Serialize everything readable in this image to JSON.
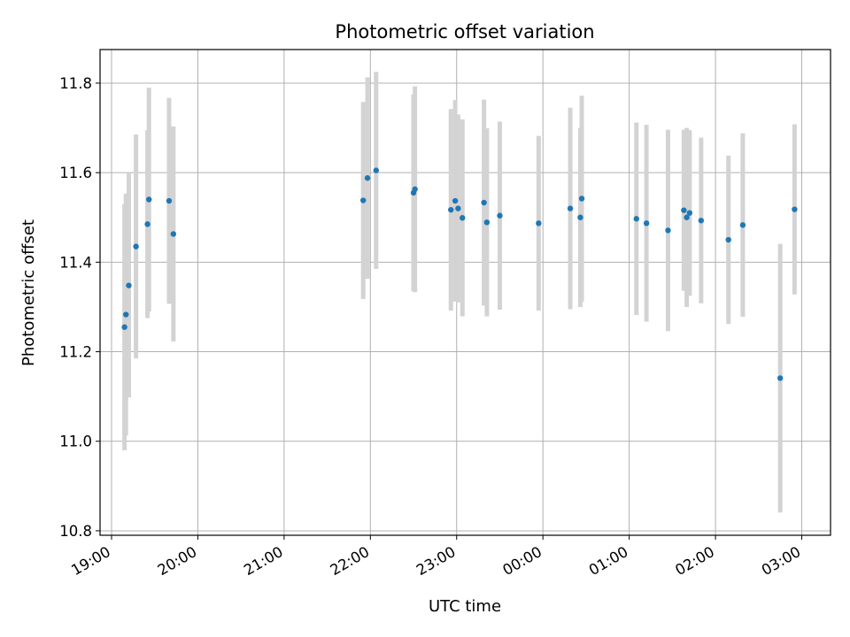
{
  "chart_data": {
    "type": "scatter",
    "title": "Photometric offset variation",
    "xlabel": "UTC time",
    "ylabel": "Photometric offset",
    "x_is_time": true,
    "x_ticks": [
      "19:00",
      "20:00",
      "21:00",
      "22:00",
      "23:00",
      "00:00",
      "01:00",
      "02:00",
      "03:00"
    ],
    "y_ticks": [
      "10.8",
      "11.0",
      "11.2",
      "11.4",
      "11.6",
      "11.8"
    ],
    "xlim": [
      "18:52",
      "03:20"
    ],
    "ylim": [
      10.79,
      11.875
    ],
    "grid": true,
    "point_color": "#1f77b4",
    "errorbar_color": "#d3d3d3",
    "points": [
      {
        "x": "19:09",
        "y": 11.255,
        "err": 0.275
      },
      {
        "x": "19:10",
        "y": 11.283,
        "err": 0.27
      },
      {
        "x": "19:12",
        "y": 11.348,
        "err": 0.25
      },
      {
        "x": "19:17",
        "y": 11.435,
        "err": 0.25
      },
      {
        "x": "19:25",
        "y": 11.485,
        "err": 0.21
      },
      {
        "x": "19:26",
        "y": 11.54,
        "err": 0.25
      },
      {
        "x": "19:40",
        "y": 11.537,
        "err": 0.23
      },
      {
        "x": "19:43",
        "y": 11.463,
        "err": 0.24
      },
      {
        "x": "21:55",
        "y": 11.538,
        "err": 0.22
      },
      {
        "x": "21:58",
        "y": 11.588,
        "err": 0.225
      },
      {
        "x": "22:04",
        "y": 11.605,
        "err": 0.22
      },
      {
        "x": "22:30",
        "y": 11.555,
        "err": 0.22
      },
      {
        "x": "22:31",
        "y": 11.563,
        "err": 0.23
      },
      {
        "x": "22:56",
        "y": 11.517,
        "err": 0.225
      },
      {
        "x": "22:59",
        "y": 11.537,
        "err": 0.225
      },
      {
        "x": "23:01",
        "y": 11.52,
        "err": 0.21
      },
      {
        "x": "23:04",
        "y": 11.499,
        "err": 0.22
      },
      {
        "x": "23:19",
        "y": 11.533,
        "err": 0.23
      },
      {
        "x": "23:21",
        "y": 11.489,
        "err": 0.21
      },
      {
        "x": "23:30",
        "y": 11.504,
        "err": 0.21
      },
      {
        "x": "23:57",
        "y": 11.487,
        "err": 0.195
      },
      {
        "x": "00:19",
        "y": 11.52,
        "err": 0.225
      },
      {
        "x": "00:26",
        "y": 11.5,
        "err": 0.2
      },
      {
        "x": "00:27",
        "y": 11.542,
        "err": 0.23
      },
      {
        "x": "01:05",
        "y": 11.497,
        "err": 0.215
      },
      {
        "x": "01:12",
        "y": 11.487,
        "err": 0.22
      },
      {
        "x": "01:27",
        "y": 11.471,
        "err": 0.225
      },
      {
        "x": "01:38",
        "y": 11.516,
        "err": 0.18
      },
      {
        "x": "01:40",
        "y": 11.5,
        "err": 0.2
      },
      {
        "x": "01:42",
        "y": 11.51,
        "err": 0.185
      },
      {
        "x": "01:50",
        "y": 11.493,
        "err": 0.185
      },
      {
        "x": "02:09",
        "y": 11.45,
        "err": 0.188
      },
      {
        "x": "02:19",
        "y": 11.483,
        "err": 0.205
      },
      {
        "x": "02:45",
        "y": 11.141,
        "err": 0.3
      },
      {
        "x": "02:55",
        "y": 11.518,
        "err": 0.19
      }
    ]
  }
}
